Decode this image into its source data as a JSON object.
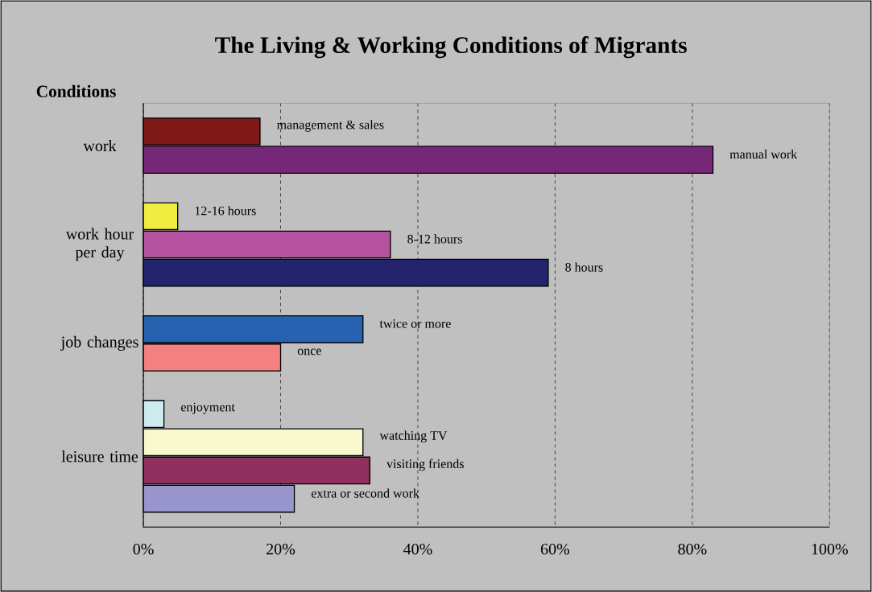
{
  "chart_data": {
    "type": "bar",
    "orientation": "horizontal",
    "title": "The Living & Working Conditions of Migrants",
    "ylabel": "Conditions",
    "categories": [
      "work",
      "work hour per day",
      "job changes",
      "leisure time"
    ],
    "series": [
      {
        "name": "management & sales",
        "color": "#7f1818",
        "values": [
          17,
          null,
          null,
          null
        ]
      },
      {
        "name": "manual work",
        "color": "#762878",
        "values": [
          83,
          null,
          null,
          null
        ]
      },
      {
        "name": "12-16 hours",
        "color": "#f0ec40",
        "values": [
          null,
          5,
          null,
          null
        ]
      },
      {
        "name": "8-12 hours",
        "color": "#b452a0",
        "values": [
          null,
          36,
          null,
          null
        ]
      },
      {
        "name": "8 hours",
        "color": "#24246c",
        "values": [
          null,
          59,
          null,
          null
        ]
      },
      {
        "name": "twice or more",
        "color": "#2662b0",
        "values": [
          null,
          null,
          32,
          null
        ]
      },
      {
        "name": "once",
        "color": "#f48080",
        "values": [
          null,
          null,
          20,
          null
        ]
      },
      {
        "name": "enjoyment",
        "color": "#ceecf0",
        "values": [
          null,
          null,
          null,
          3
        ]
      },
      {
        "name": "watching TV",
        "color": "#faf8ce",
        "values": [
          null,
          null,
          null,
          32
        ]
      },
      {
        "name": "visiting friends",
        "color": "#90305e",
        "values": [
          null,
          null,
          null,
          33
        ]
      },
      {
        "name": "extra or second work",
        "color": "#9894cc",
        "values": [
          null,
          null,
          null,
          22
        ]
      }
    ],
    "xlim": [
      0,
      100
    ],
    "xticks": [
      {
        "value": 0,
        "label": "0%"
      },
      {
        "value": 20,
        "label": "20%"
      },
      {
        "value": 40,
        "label": "40%"
      },
      {
        "value": 60,
        "label": "60%"
      },
      {
        "value": 80,
        "label": "80%"
      },
      {
        "value": 100,
        "label": "100%"
      }
    ],
    "grid": "x"
  }
}
